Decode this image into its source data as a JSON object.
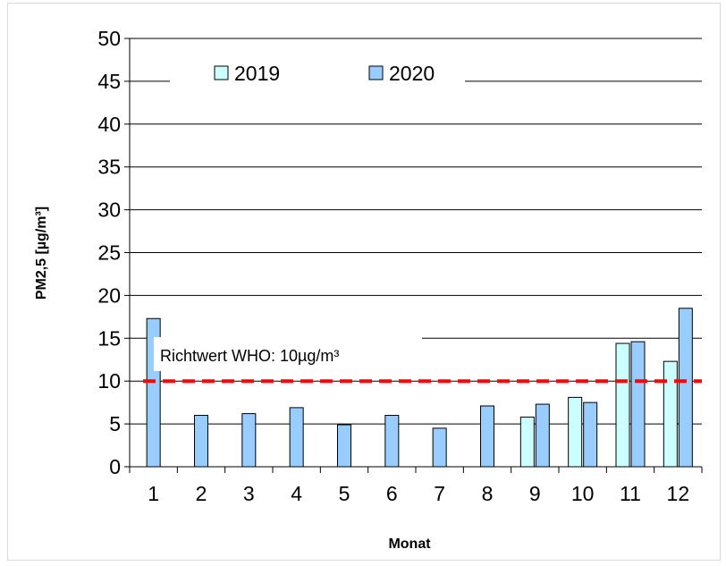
{
  "chart_data": {
    "type": "bar",
    "categories": [
      "1",
      "2",
      "3",
      "4",
      "5",
      "6",
      "7",
      "8",
      "9",
      "10",
      "11",
      "12"
    ],
    "series": [
      {
        "name": "2019",
        "color": "#ccffff",
        "values": [
          null,
          null,
          null,
          null,
          null,
          null,
          null,
          null,
          5.8,
          8.1,
          14.4,
          12.3
        ]
      },
      {
        "name": "2020",
        "color": "#99ccff",
        "values": [
          17.3,
          6.0,
          6.2,
          6.9,
          4.9,
          6.0,
          4.5,
          7.1,
          7.3,
          7.5,
          14.6,
          18.5
        ]
      }
    ],
    "xlabel": "Monat",
    "ylabel": "PM2,5 [µg/m³]",
    "ylim": [
      0,
      50
    ],
    "yticks": [
      "0",
      "5",
      "10",
      "15",
      "20",
      "25",
      "30",
      "35",
      "40",
      "45",
      "50"
    ],
    "grid": true,
    "legend_position": "top",
    "reference_line": {
      "value": 10,
      "label": "Richtwert WHO: 10µg/m³",
      "color": "#ff0000"
    }
  }
}
